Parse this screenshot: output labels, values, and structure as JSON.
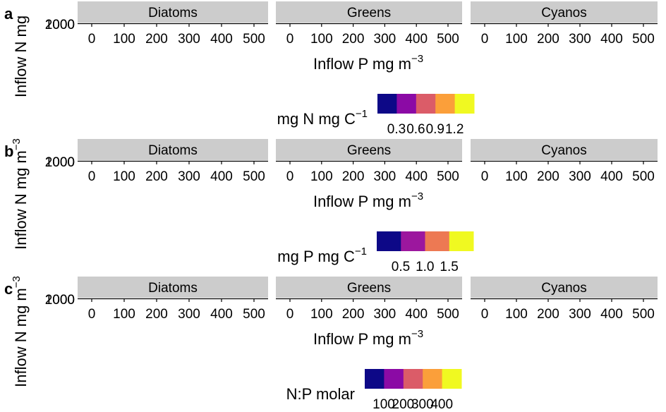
{
  "chart_data": [
    {
      "panel": "a",
      "type": "heatmap",
      "facets": [
        "Diatoms",
        "Greens",
        "Cyanos"
      ],
      "x_ticks": [
        "0",
        "100",
        "200",
        "300",
        "400",
        "500"
      ],
      "xlim": [
        0,
        500
      ],
      "y_ticks": [
        "1000",
        "2000"
      ],
      "xlabel": "Inflow P mg m",
      "xlabel_sup": "−3",
      "ylabel": "Inflow N mg",
      "ylabel_sup": "",
      "legend_title": "mg N mg C",
      "legend_title_sup": "−1",
      "legend_colors": [
        "#0d0887",
        "#8b0aa5",
        "#db5c68",
        "#fb9f3a",
        "#f0f921"
      ],
      "legend_ticks": [
        "0.3",
        "0.6",
        "0.9",
        "1.2"
      ],
      "values": []
    },
    {
      "panel": "b",
      "type": "heatmap",
      "facets": [
        "Diatoms",
        "Greens",
        "Cyanos"
      ],
      "x_ticks": [
        "0",
        "100",
        "200",
        "300",
        "400",
        "500"
      ],
      "xlim": [
        0,
        500
      ],
      "y_ticks": [
        "1000",
        "2000"
      ],
      "xlabel": "Inflow P mg m",
      "xlabel_sup": "−3",
      "ylabel": "Inflow N mg m",
      "ylabel_sup": "−3",
      "legend_title": "mg P mg C",
      "legend_title_sup": "−1",
      "legend_colors": [
        "#0d0887",
        "#9c179e",
        "#ed7953",
        "#f0f921"
      ],
      "legend_ticks": [
        "0.5",
        "1.0",
        "1.5"
      ],
      "values": []
    },
    {
      "panel": "c",
      "type": "heatmap",
      "facets": [
        "Diatoms",
        "Greens",
        "Cyanos"
      ],
      "x_ticks": [
        "0",
        "100",
        "200",
        "300",
        "400",
        "500"
      ],
      "xlim": [
        0,
        500
      ],
      "y_ticks": [
        "1000",
        "2000"
      ],
      "xlabel": "Inflow P mg m",
      "xlabel_sup": "−3",
      "ylabel": "Inflow N mg m",
      "ylabel_sup": "−3",
      "legend_title": "N:P molar",
      "legend_title_sup": "",
      "legend_colors": [
        "#0d0887",
        "#8b0aa5",
        "#db5c68",
        "#fb9f3a",
        "#f0f921"
      ],
      "legend_ticks": [
        "100",
        "200",
        "300",
        "400"
      ],
      "values": []
    }
  ],
  "colors": {
    "strip_bg": "#cccccc",
    "axis": "#000000"
  }
}
